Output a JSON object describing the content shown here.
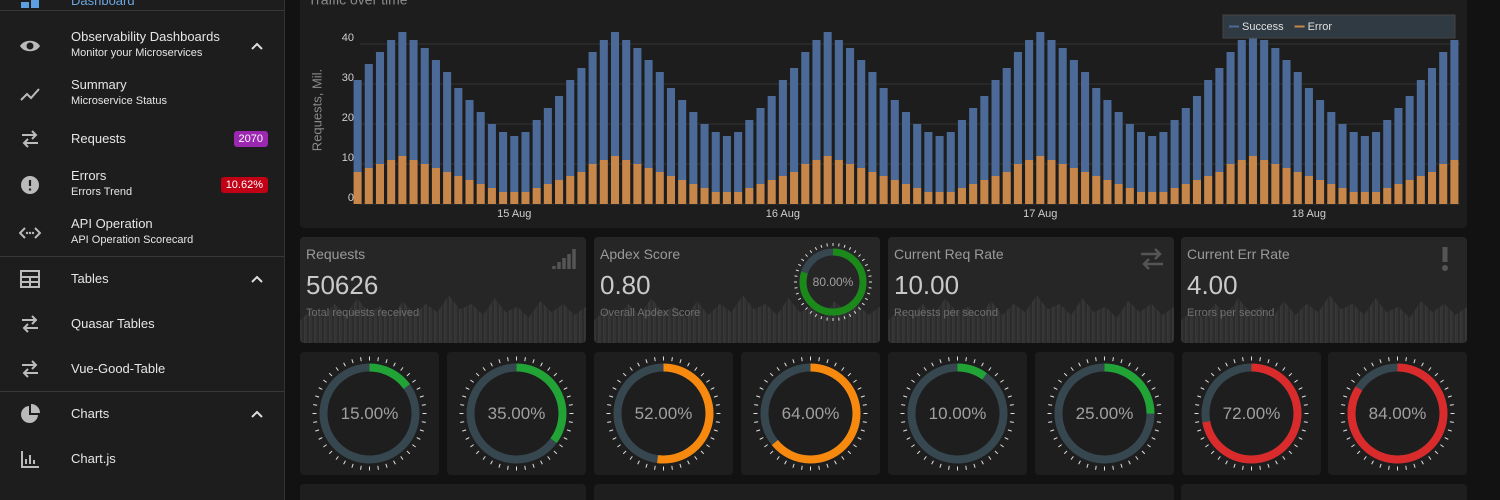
{
  "sidebar": {
    "items": [
      {
        "label": "Dashboard"
      },
      {
        "label": "Observability Dashboards",
        "caption": "Monitor your Microservices"
      },
      {
        "label": "Summary",
        "caption": "Microservice Status"
      },
      {
        "label": "Requests",
        "badge": 2070,
        "badge_color": "#9c27b0"
      },
      {
        "label": "Errors",
        "caption": "Errors Trend",
        "badge": "10.62%",
        "badge_color": "#c10015"
      },
      {
        "label": "API Operation",
        "caption": "API Operation Scorecard"
      },
      {
        "label": "Tables"
      },
      {
        "label": "Quasar Tables"
      },
      {
        "label": "Vue-Good-Table"
      },
      {
        "label": "Charts"
      },
      {
        "label": "Chart.js"
      }
    ]
  },
  "chart_data": {
    "type": "stacked-bar",
    "title": "Traffic over time",
    "y_label": "Requests, Mil.",
    "categories": [
      null,
      null,
      null,
      null,
      null,
      null,
      null,
      null,
      null,
      null,
      null,
      null,
      null,
      null,
      "15 Aug",
      null,
      null,
      null,
      null,
      null,
      null,
      null,
      null,
      null,
      null,
      null,
      null,
      null,
      null,
      null,
      null,
      null,
      null,
      null,
      null,
      null,
      null,
      null,
      "16 Aug",
      null,
      null,
      null,
      null,
      null,
      null,
      null,
      null,
      null,
      null,
      null,
      null,
      null,
      null,
      null,
      null,
      null,
      null,
      null,
      null,
      null,
      null,
      "17 Aug",
      null,
      null,
      null,
      null,
      null,
      null,
      null,
      null,
      null,
      null,
      null,
      null,
      null,
      null,
      null,
      null,
      null,
      null,
      null,
      null,
      null,
      null,
      null,
      "18 Aug",
      null,
      null,
      null,
      null,
      null,
      null,
      null,
      null,
      null,
      null,
      null,
      null,
      null
    ],
    "series": [
      {
        "name": "Success",
        "color": "#4b6a97",
        "values": [
          23,
          26,
          28,
          30,
          31,
          30,
          29,
          27,
          25,
          22,
          20,
          18,
          16,
          15,
          14,
          15,
          17,
          19,
          21,
          24,
          26,
          28,
          30,
          31,
          30,
          29,
          27,
          25,
          22,
          20,
          18,
          16,
          15,
          14,
          15,
          17,
          19,
          21,
          24,
          26,
          28,
          30,
          31,
          30,
          29,
          27,
          25,
          22,
          20,
          18,
          16,
          15,
          14,
          15,
          17,
          19,
          21,
          24,
          26,
          28,
          30,
          31,
          30,
          29,
          27,
          25,
          22,
          20,
          18,
          16,
          15,
          14,
          15,
          17,
          19,
          21,
          24,
          26,
          28,
          30,
          31,
          30,
          29,
          27,
          25,
          22,
          20,
          18,
          16,
          15,
          14,
          15,
          17,
          19,
          21,
          24,
          26,
          28,
          30
        ]
      },
      {
        "name": "Error",
        "color": "#c8874a",
        "values": [
          8,
          9,
          10,
          11,
          12,
          11,
          10,
          9,
          8,
          7,
          6,
          5,
          4,
          3,
          3,
          3,
          4,
          5,
          6,
          7,
          8,
          10,
          11,
          12,
          11,
          10,
          9,
          8,
          7,
          6,
          5,
          4,
          3,
          3,
          3,
          4,
          5,
          6,
          7,
          8,
          10,
          11,
          12,
          11,
          10,
          9,
          8,
          7,
          6,
          5,
          4,
          3,
          3,
          3,
          4,
          5,
          6,
          7,
          8,
          10,
          11,
          12,
          11,
          10,
          9,
          8,
          7,
          6,
          5,
          4,
          3,
          3,
          3,
          4,
          5,
          6,
          7,
          8,
          10,
          11,
          12,
          11,
          10,
          9,
          8,
          7,
          6,
          5,
          4,
          3,
          3,
          3,
          4,
          5,
          6,
          7,
          8,
          10,
          11
        ]
      }
    ],
    "ylim": [
      0,
      45
    ],
    "yticks": [
      0,
      10,
      20,
      30,
      40
    ],
    "grid": true,
    "legend": "top-right"
  },
  "stat_cards": [
    {
      "title": "Requests",
      "value": 50626,
      "caption": "Total requests received"
    },
    {
      "title": "Apdex Score",
      "value": "0.80",
      "caption": "Overall Apdex Score",
      "gauge": {
        "value": 80,
        "label": "80.00%",
        "color": "#1b8a1b"
      }
    },
    {
      "title": "Current Req Rate",
      "value": "10.00",
      "caption": "Requests per second"
    },
    {
      "title": "Current Err Rate",
      "value": "4.00",
      "caption": "Errors per second"
    }
  ],
  "gauges": {
    "values": [
      15,
      35,
      52,
      64,
      10,
      25,
      72,
      84
    ],
    "value_labels": [
      "15.00%",
      "35.00%",
      "52.00%",
      "64.00%",
      "10.00%",
      "25.00%",
      "72.00%",
      "84.00%"
    ],
    "colors": [
      "#21a336",
      "#21a336",
      "#f7890f",
      "#f7890f",
      "#21a336",
      "#21a336",
      "#d92b2b",
      "#d92b2b"
    ]
  }
}
